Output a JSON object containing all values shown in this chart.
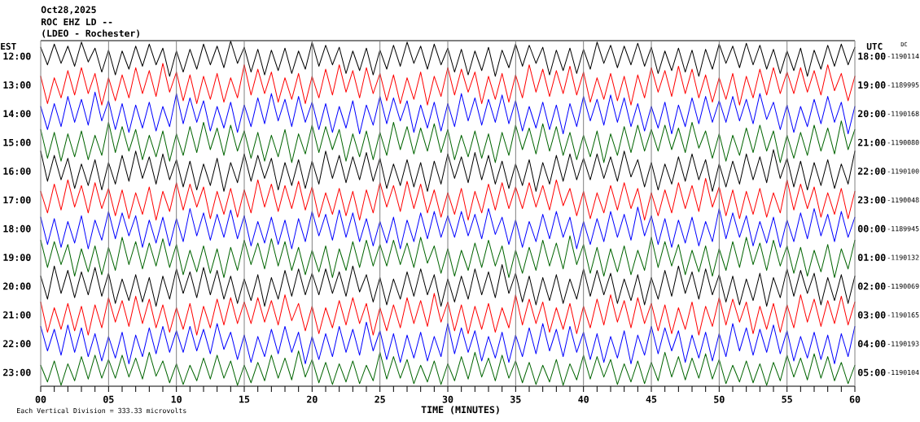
{
  "chart_data": {
    "type": "line",
    "title": "Oct28,2025",
    "subtitle": "ROC EHZ LD --",
    "xlabel": "TIME (MINUTES)",
    "ylabel": "EST",
    "annotations": [
      "(LDEO - Rochester)",
      "Each Vertical Division = 333.33 microvolts",
      "UTC",
      "DC",
      "18:00",
      "19:00",
      "20:00",
      "21:00",
      "22:00",
      "23:00",
      "00:00",
      "01:00",
      "02:00",
      "03:00",
      "04:00",
      "05:00",
      "-1190114",
      "-1189995",
      "-1190168",
      "-1190080",
      "-1190100",
      "-1190048",
      "-1189945",
      "-1190132",
      "-1190069",
      "-1190165",
      "-1190193",
      "-1190104"
    ],
    "grid": "x",
    "xlim": [
      0,
      60
    ],
    "xticks": [
      {
        "value": 0,
        "label": "00"
      },
      {
        "value": 1,
        "label": null
      },
      {
        "value": 2,
        "label": null
      },
      {
        "value": 3,
        "label": null
      },
      {
        "value": 4,
        "label": null
      },
      {
        "value": 5,
        "label": "05"
      },
      {
        "value": 6,
        "label": null
      },
      {
        "value": 7,
        "label": null
      },
      {
        "value": 8,
        "label": null
      },
      {
        "value": 9,
        "label": null
      },
      10,
      {
        "value": 11,
        "label": null
      },
      {
        "value": 12,
        "label": null
      },
      {
        "value": 13,
        "label": null
      },
      {
        "value": 14,
        "label": null
      },
      15,
      {
        "value": 16,
        "label": null
      },
      {
        "value": 17,
        "label": null
      },
      {
        "value": 18,
        "label": null
      },
      {
        "value": 19,
        "label": null
      },
      20,
      {
        "value": 21,
        "label": null
      },
      {
        "value": 22,
        "label": null
      },
      {
        "value": 23,
        "label": null
      },
      {
        "value": 24,
        "label": null
      },
      25,
      {
        "value": 26,
        "label": null
      },
      {
        "value": 27,
        "label": null
      },
      {
        "value": 28,
        "label": null
      },
      {
        "value": 29,
        "label": null
      },
      30,
      {
        "value": 31,
        "label": null
      },
      {
        "value": 32,
        "label": null
      },
      {
        "value": 33,
        "label": null
      },
      {
        "value": 34,
        "label": null
      },
      35,
      {
        "value": 36,
        "label": null
      },
      {
        "value": 37,
        "label": null
      },
      {
        "value": 38,
        "label": null
      },
      {
        "value": 39,
        "label": null
      },
      40,
      {
        "value": 41,
        "label": null
      },
      {
        "value": 42,
        "label": null
      },
      {
        "value": 43,
        "label": null
      },
      {
        "value": 44,
        "label": null
      },
      45,
      {
        "value": 46,
        "label": null
      },
      {
        "value": 47,
        "label": null
      },
      {
        "value": 48,
        "label": null
      },
      {
        "value": 49,
        "label": null
      },
      50,
      {
        "value": 51,
        "label": null
      },
      {
        "value": 52,
        "label": null
      },
      {
        "value": 53,
        "label": null
      },
      {
        "value": 54,
        "label": null
      },
      55,
      {
        "value": 56,
        "label": null
      },
      {
        "value": 57,
        "label": null
      },
      {
        "value": 58,
        "label": null
      },
      {
        "value": 59,
        "label": null
      },
      60
    ],
    "ylim": [
      23.48,
      11.46
    ],
    "yticks": [
      {
        "value": 12,
        "label": "12:00"
      },
      {
        "value": 13,
        "label": "13:00"
      },
      {
        "value": 14,
        "label": "14:00"
      },
      {
        "value": 15,
        "label": "15:00"
      },
      {
        "value": 16,
        "label": "16:00"
      },
      {
        "value": 17,
        "label": "17:00"
      },
      {
        "value": 18,
        "label": "18:00"
      },
      {
        "value": 19,
        "label": "19:00"
      },
      {
        "value": 20,
        "label": "20:00"
      },
      {
        "value": 21,
        "label": "21:00"
      },
      {
        "value": 22,
        "label": "22:00"
      },
      {
        "value": 23,
        "label": "23:00"
      }
    ],
    "x": [
      0,
      0.5,
      1,
      1.5,
      2,
      2.5,
      3,
      3.5,
      4,
      4.5,
      5,
      5.5,
      6,
      6.5,
      7,
      7.5,
      8,
      8.5,
      9,
      9.5,
      10,
      10.5,
      11,
      11.5,
      12,
      12.5,
      13,
      13.5,
      14,
      14.5,
      15,
      15.5,
      16,
      16.5,
      17,
      17.5,
      18,
      18.5,
      19,
      19.5,
      20,
      20.5,
      21,
      21.5,
      22,
      22.5,
      23,
      23.5,
      24,
      24.5,
      25,
      25.5,
      26,
      26.5,
      27,
      27.5,
      28,
      28.5,
      29,
      29.5,
      30,
      30.5,
      31,
      31.5,
      32,
      32.5,
      33,
      33.5,
      34,
      34.5,
      35,
      35.5,
      36,
      36.5,
      37,
      37.5,
      38,
      38.5,
      39,
      39.5,
      40,
      40.5,
      41,
      41.5,
      42,
      42.5,
      43,
      43.5,
      44,
      44.5,
      45,
      45.5,
      46,
      46.5,
      47,
      47.5,
      48,
      48.5,
      49,
      49.5,
      50,
      50.5,
      51,
      51.5,
      52,
      52.5,
      53,
      53.5,
      54,
      54.5,
      55,
      55.5,
      56,
      56.5,
      57,
      57.5,
      58,
      58.5,
      59,
      59.5,
      60
    ],
    "series": [
      {
        "color": "#000000",
        "values": [
          11.69,
          12.3,
          11.58,
          12.25,
          11.65,
          12.35,
          11.51,
          12.2,
          11.72,
          12.55,
          11.79,
          12.65,
          11.82,
          12.45,
          11.65,
          12.35,
          11.58,
          12.3,
          11.72,
          12.7,
          11.82,
          12.55,
          11.76,
          12.45,
          11.58,
          12.3,
          11.65,
          12.4,
          11.48,
          12.25,
          11.69,
          12.55,
          11.76,
          12.65,
          11.79,
          12.5,
          11.72,
          12.6,
          11.82,
          12.45,
          11.51,
          12.35,
          11.62,
          12.3,
          11.69,
          12.6,
          11.82,
          12.5,
          11.72,
          12.65,
          11.79,
          12.45,
          11.62,
          12.35,
          11.51,
          12.25,
          11.65,
          12.45,
          11.58,
          12.3,
          11.72,
          12.55,
          11.76,
          12.65,
          11.82,
          12.5,
          11.69,
          12.7,
          11.79,
          12.4,
          11.58,
          12.35,
          11.62,
          12.25,
          11.69,
          12.65,
          11.79,
          12.5,
          11.72,
          12.6,
          11.76,
          12.45,
          11.51,
          12.25,
          11.62,
          12.4,
          11.65,
          12.3,
          11.55,
          12.35,
          11.69,
          12.6,
          11.82,
          12.5,
          11.72,
          12.55,
          11.79,
          12.7,
          11.76,
          12.45,
          11.58,
          12.25,
          11.65,
          12.4,
          11.55,
          12.3,
          11.62,
          12.45,
          11.76,
          12.6,
          11.82,
          12.5,
          11.72,
          12.7,
          11.79,
          12.45,
          11.62,
          12.35,
          11.58,
          12.3,
          11.69
        ]
      },
      {
        "color": "#ff0000",
        "values": [
          12.7,
          13.65,
          12.75,
          13.45,
          12.5,
          13.35,
          12.4,
          13.3,
          12.6,
          13.7,
          12.75,
          13.55,
          12.65,
          13.45,
          12.4,
          13.3,
          12.5,
          13.4,
          12.25,
          13.25,
          12.55,
          13.55,
          12.65,
          13.65,
          12.7,
          13.5,
          12.6,
          13.6,
          12.75,
          13.45,
          12.3,
          13.35,
          12.45,
          13.3,
          12.55,
          13.6,
          12.75,
          13.5,
          12.6,
          13.65,
          12.7,
          13.45,
          12.45,
          13.35,
          12.3,
          13.25,
          12.5,
          13.45,
          12.4,
          13.3,
          12.6,
          13.55,
          12.65,
          13.65,
          12.75,
          13.5,
          12.55,
          13.7,
          12.7,
          13.4,
          12.4,
          13.35,
          12.45,
          13.25,
          12.55,
          13.65,
          12.7,
          13.5,
          12.6,
          13.6,
          12.65,
          13.45,
          12.3,
          13.25,
          12.45,
          13.4,
          12.5,
          13.3,
          12.35,
          13.35,
          12.55,
          13.6,
          12.75,
          13.5,
          12.6,
          13.55,
          12.7,
          13.7,
          12.65,
          13.45,
          12.4,
          13.25,
          12.5,
          13.4,
          12.35,
          13.3,
          12.45,
          13.45,
          12.65,
          13.6,
          12.75,
          13.5,
          12.6,
          13.7,
          12.7,
          13.45,
          12.45,
          13.35,
          12.4,
          13.3,
          12.55,
          13.3,
          12.4,
          13.25,
          12.5,
          13.35,
          12.3,
          13.2,
          12.6,
          13.55,
          12.7
        ]
      },
      {
        "color": "#0000ff",
        "values": [
          13.75,
          14.55,
          13.65,
          14.45,
          13.4,
          14.3,
          13.5,
          14.4,
          13.25,
          14.25,
          13.55,
          14.55,
          13.65,
          14.65,
          13.7,
          14.5,
          13.6,
          14.6,
          13.75,
          14.45,
          13.3,
          14.35,
          13.45,
          14.3,
          13.55,
          14.6,
          13.75,
          14.5,
          13.6,
          14.65,
          13.7,
          14.45,
          13.45,
          14.35,
          13.3,
          14.25,
          13.5,
          14.45,
          13.4,
          14.3,
          13.6,
          14.55,
          13.65,
          14.65,
          13.75,
          14.5,
          13.55,
          14.7,
          13.7,
          14.4,
          13.4,
          14.35,
          13.45,
          14.25,
          13.55,
          14.65,
          13.7,
          14.5,
          13.6,
          14.6,
          13.65,
          14.45,
          13.3,
          14.25,
          13.45,
          14.4,
          13.5,
          14.3,
          13.35,
          14.35,
          13.55,
          14.6,
          13.75,
          14.5,
          13.6,
          14.55,
          13.7,
          14.7,
          13.65,
          14.45,
          13.4,
          14.25,
          13.5,
          14.4,
          13.35,
          14.3,
          13.45,
          14.45,
          13.65,
          14.6,
          13.75,
          14.5,
          13.6,
          14.7,
          13.7,
          14.45,
          13.45,
          14.35,
          13.4,
          14.3,
          13.55,
          14.3,
          13.4,
          14.25,
          13.5,
          14.35,
          13.3,
          14.2,
          13.6,
          14.55,
          13.7,
          14.65,
          13.75,
          14.45,
          13.5,
          14.35,
          13.4,
          14.3,
          13.6,
          14.7,
          13.75
        ]
      },
      {
        "color": "#006400",
        "values": [
          14.55,
          15.55,
          14.65,
          15.65,
          14.7,
          15.5,
          14.6,
          15.6,
          14.75,
          15.45,
          14.3,
          15.35,
          14.45,
          15.3,
          14.55,
          15.6,
          14.75,
          15.5,
          14.6,
          15.65,
          14.7,
          15.45,
          14.45,
          15.35,
          14.3,
          15.25,
          14.5,
          15.45,
          14.4,
          15.3,
          14.6,
          15.55,
          14.65,
          15.65,
          14.75,
          15.5,
          14.55,
          15.7,
          14.7,
          15.4,
          14.4,
          15.35,
          14.45,
          15.25,
          14.55,
          15.65,
          14.7,
          15.5,
          14.6,
          15.6,
          14.65,
          15.45,
          14.3,
          15.25,
          14.45,
          15.4,
          14.5,
          15.3,
          14.35,
          15.35,
          14.55,
          15.6,
          14.75,
          15.5,
          14.6,
          15.55,
          14.7,
          15.7,
          14.65,
          15.45,
          14.4,
          15.25,
          14.5,
          15.4,
          14.35,
          15.3,
          14.45,
          15.45,
          14.65,
          15.6,
          14.75,
          15.5,
          14.6,
          15.7,
          14.7,
          15.45,
          14.45,
          15.35,
          14.4,
          15.3,
          14.55,
          15.3,
          14.4,
          15.25,
          14.5,
          15.35,
          14.3,
          15.2,
          14.6,
          15.55,
          14.7,
          15.65,
          14.75,
          15.45,
          14.5,
          15.35,
          14.4,
          15.3,
          14.6,
          15.7,
          14.75,
          15.55,
          14.65,
          15.45,
          14.4,
          15.3,
          14.5,
          15.4,
          14.25,
          15.25,
          14.55
        ]
      },
      {
        "color": "#000000",
        "values": [
          15.3,
          16.35,
          15.45,
          16.3,
          15.55,
          16.6,
          15.75,
          16.5,
          15.6,
          16.65,
          15.7,
          16.45,
          15.45,
          16.35,
          15.3,
          16.25,
          15.5,
          16.45,
          15.4,
          16.3,
          15.6,
          16.55,
          15.65,
          16.65,
          15.75,
          16.5,
          15.55,
          16.7,
          15.7,
          16.4,
          15.4,
          16.35,
          15.45,
          16.25,
          15.55,
          16.65,
          15.7,
          16.5,
          15.6,
          16.6,
          15.65,
          16.45,
          15.3,
          16.25,
          15.45,
          16.4,
          15.5,
          16.3,
          15.35,
          16.35,
          15.55,
          16.6,
          15.75,
          16.5,
          15.6,
          16.55,
          15.7,
          16.7,
          15.65,
          16.45,
          15.4,
          16.25,
          15.5,
          16.4,
          15.35,
          16.3,
          15.45,
          16.45,
          15.65,
          16.6,
          15.75,
          16.5,
          15.6,
          16.7,
          15.7,
          16.45,
          15.45,
          16.35,
          15.4,
          16.3,
          15.55,
          16.3,
          15.4,
          16.25,
          15.5,
          16.35,
          15.3,
          16.2,
          15.6,
          16.55,
          15.7,
          16.65,
          15.75,
          16.45,
          15.5,
          16.35,
          15.4,
          16.3,
          15.6,
          16.7,
          15.75,
          16.55,
          15.65,
          16.45,
          15.4,
          16.3,
          15.5,
          16.4,
          15.25,
          16.25,
          15.55,
          16.55,
          15.65,
          16.65,
          15.7,
          16.5,
          15.6,
          16.6,
          15.75,
          16.45,
          15.3
        ]
      },
      {
        "color": "#ff0000",
        "values": [
          16.7,
          17.45,
          16.45,
          17.35,
          16.3,
          17.25,
          16.5,
          17.45,
          16.4,
          17.3,
          16.6,
          17.55,
          16.65,
          17.65,
          16.75,
          17.5,
          16.55,
          17.7,
          16.7,
          17.4,
          16.4,
          17.35,
          16.45,
          17.25,
          16.55,
          17.65,
          16.7,
          17.5,
          16.6,
          17.6,
          16.65,
          17.45,
          16.3,
          17.25,
          16.45,
          17.4,
          16.5,
          17.3,
          16.35,
          17.35,
          16.55,
          17.6,
          16.75,
          17.5,
          16.6,
          17.55,
          16.7,
          17.7,
          16.65,
          17.45,
          16.4,
          17.25,
          16.5,
          17.4,
          16.35,
          17.3,
          16.45,
          17.45,
          16.65,
          17.6,
          16.75,
          17.5,
          16.6,
          17.7,
          16.7,
          17.45,
          16.45,
          17.35,
          16.4,
          17.3,
          16.55,
          17.3,
          16.4,
          17.25,
          16.5,
          17.35,
          16.3,
          17.2,
          16.6,
          17.55,
          16.7,
          17.65,
          16.75,
          17.45,
          16.5,
          17.35,
          16.4,
          17.3,
          16.6,
          17.7,
          16.75,
          17.55,
          16.65,
          17.45,
          16.4,
          17.3,
          16.5,
          17.4,
          16.25,
          17.25,
          16.55,
          17.55,
          16.65,
          17.65,
          16.7,
          17.5,
          16.6,
          17.6,
          16.75,
          17.45,
          16.3,
          17.35,
          16.45,
          17.3,
          16.55,
          17.6,
          16.75,
          17.5,
          16.6,
          17.65,
          16.7
        ]
      },
      {
        "color": "#0000ff",
        "values": [
          17.6,
          18.55,
          17.65,
          18.65,
          17.75,
          18.5,
          17.55,
          18.7,
          17.7,
          18.4,
          17.4,
          18.35,
          17.45,
          18.25,
          17.55,
          18.65,
          17.7,
          18.5,
          17.6,
          18.6,
          17.65,
          18.45,
          17.3,
          18.25,
          17.45,
          18.4,
          17.5,
          18.3,
          17.35,
          18.35,
          17.55,
          18.6,
          17.75,
          18.5,
          17.6,
          18.55,
          17.7,
          18.7,
          17.65,
          18.45,
          17.4,
          18.25,
          17.5,
          18.4,
          17.35,
          18.3,
          17.45,
          18.45,
          17.65,
          18.6,
          17.75,
          18.5,
          17.6,
          18.7,
          17.7,
          18.45,
          17.45,
          18.35,
          17.4,
          18.3,
          17.55,
          18.3,
          17.4,
          18.25,
          17.5,
          18.35,
          17.3,
          18.2,
          17.6,
          18.55,
          17.7,
          18.65,
          17.75,
          18.45,
          17.5,
          18.35,
          17.4,
          18.3,
          17.6,
          18.7,
          17.75,
          18.55,
          17.65,
          18.45,
          17.4,
          18.3,
          17.5,
          18.4,
          17.25,
          18.25,
          17.55,
          18.55,
          17.65,
          18.65,
          17.7,
          18.5,
          17.6,
          18.6,
          17.75,
          18.45,
          17.3,
          18.35,
          17.45,
          18.3,
          17.55,
          18.6,
          17.75,
          18.5,
          17.6,
          18.65,
          17.7,
          18.45,
          17.45,
          18.35,
          17.3,
          18.25,
          17.5,
          18.45,
          17.4,
          18.3,
          17.6
        ]
      },
      {
        "color": "#006400",
        "values": [
          18.4,
          19.35,
          18.45,
          19.25,
          18.55,
          19.65,
          18.7,
          19.5,
          18.6,
          19.6,
          18.65,
          19.45,
          18.3,
          19.25,
          18.45,
          19.4,
          18.5,
          19.3,
          18.35,
          19.35,
          18.55,
          19.6,
          18.75,
          19.5,
          18.6,
          19.55,
          18.7,
          19.7,
          18.65,
          19.45,
          18.4,
          19.25,
          18.5,
          19.4,
          18.35,
          19.3,
          18.45,
          19.45,
          18.65,
          19.6,
          18.75,
          19.5,
          18.6,
          19.7,
          18.7,
          19.45,
          18.45,
          19.35,
          18.4,
          19.3,
          18.55,
          19.3,
          18.4,
          19.25,
          18.5,
          19.35,
          18.3,
          19.2,
          18.6,
          19.55,
          18.7,
          19.65,
          18.75,
          19.45,
          18.5,
          19.35,
          18.4,
          19.3,
          18.6,
          19.7,
          18.75,
          19.55,
          18.65,
          19.45,
          18.4,
          19.3,
          18.5,
          19.4,
          18.25,
          19.25,
          18.55,
          19.55,
          18.65,
          19.65,
          18.7,
          19.5,
          18.6,
          19.6,
          18.75,
          19.45,
          18.3,
          19.35,
          18.45,
          19.3,
          18.55,
          19.6,
          18.75,
          19.5,
          18.6,
          19.65,
          18.7,
          19.45,
          18.45,
          19.35,
          18.3,
          19.25,
          18.5,
          19.45,
          18.4,
          19.3,
          18.6,
          19.55,
          18.65,
          19.65,
          18.75,
          19.5,
          18.55,
          19.7,
          18.7,
          19.4,
          18.4
        ]
      },
      {
        "color": "#000000",
        "values": [
          19.65,
          20.45,
          19.3,
          20.25,
          19.45,
          20.4,
          19.5,
          20.3,
          19.35,
          20.35,
          19.55,
          20.6,
          19.75,
          20.5,
          19.6,
          20.55,
          19.7,
          20.7,
          19.65,
          20.45,
          19.4,
          20.25,
          19.5,
          20.4,
          19.35,
          20.3,
          19.45,
          20.45,
          19.65,
          20.6,
          19.75,
          20.5,
          19.6,
          20.7,
          19.7,
          20.45,
          19.45,
          20.35,
          19.4,
          20.3,
          19.55,
          20.3,
          19.4,
          20.25,
          19.5,
          20.35,
          19.3,
          20.2,
          19.6,
          20.55,
          19.7,
          20.65,
          19.75,
          20.45,
          19.5,
          20.35,
          19.4,
          20.3,
          19.6,
          20.7,
          19.75,
          20.55,
          19.65,
          20.45,
          19.4,
          20.3,
          19.5,
          20.4,
          19.25,
          20.25,
          19.55,
          20.55,
          19.65,
          20.65,
          19.7,
          20.5,
          19.6,
          20.6,
          19.75,
          20.45,
          19.4,
          20.35,
          19.45,
          20.3,
          19.55,
          20.6,
          19.75,
          20.5,
          19.6,
          20.65,
          19.7,
          20.45,
          19.45,
          20.35,
          19.3,
          20.25,
          19.5,
          20.45,
          19.4,
          20.3,
          19.6,
          20.55,
          19.65,
          20.65,
          19.75,
          20.5,
          19.55,
          20.7,
          19.7,
          20.4,
          19.4,
          20.35,
          19.45,
          20.25,
          19.55,
          20.65,
          19.7,
          20.5,
          19.6,
          20.6,
          19.65
        ]
      },
      {
        "color": "#ff0000",
        "values": [
          20.55,
          21.6,
          20.75,
          21.5,
          20.6,
          21.55,
          20.7,
          21.7,
          20.65,
          21.45,
          20.4,
          21.25,
          20.5,
          21.4,
          20.35,
          21.3,
          20.45,
          21.45,
          20.65,
          21.6,
          20.75,
          21.5,
          20.6,
          21.7,
          20.7,
          21.45,
          20.45,
          21.35,
          20.4,
          21.3,
          20.55,
          21.3,
          20.4,
          21.25,
          20.5,
          21.35,
          20.3,
          21.2,
          20.6,
          21.55,
          20.7,
          21.65,
          20.75,
          21.45,
          20.5,
          21.35,
          20.4,
          21.3,
          20.6,
          21.7,
          20.75,
          21.55,
          20.65,
          21.45,
          20.4,
          21.3,
          20.5,
          21.4,
          20.25,
          21.25,
          20.55,
          21.55,
          20.65,
          21.65,
          20.7,
          21.5,
          20.6,
          21.6,
          20.75,
          21.45,
          20.3,
          21.35,
          20.45,
          21.3,
          20.55,
          21.6,
          20.75,
          21.5,
          20.6,
          21.65,
          20.7,
          21.45,
          20.45,
          21.35,
          20.3,
          21.25,
          20.5,
          21.45,
          20.4,
          21.3,
          20.6,
          21.55,
          20.65,
          21.65,
          20.75,
          21.5,
          20.55,
          21.7,
          20.7,
          21.4,
          20.4,
          21.35,
          20.45,
          21.25,
          20.55,
          21.65,
          20.7,
          21.5,
          20.6,
          21.6,
          20.65,
          21.45,
          20.3,
          21.25,
          20.45,
          21.4,
          20.5,
          21.3,
          20.35,
          21.35,
          20.55
        ]
      },
      {
        "color": "#0000ff",
        "values": [
          21.4,
          22.25,
          21.5,
          22.4,
          21.35,
          22.3,
          21.45,
          22.45,
          21.65,
          22.6,
          21.75,
          22.5,
          21.6,
          22.7,
          21.7,
          22.45,
          21.45,
          22.35,
          21.4,
          22.3,
          21.55,
          22.3,
          21.4,
          22.25,
          21.5,
          22.35,
          21.3,
          22.2,
          21.6,
          22.55,
          21.7,
          22.65,
          21.75,
          22.45,
          21.5,
          22.35,
          21.4,
          22.3,
          21.6,
          22.7,
          21.75,
          22.55,
          21.65,
          22.45,
          21.4,
          22.3,
          21.5,
          22.4,
          21.25,
          22.25,
          21.55,
          22.55,
          21.65,
          22.65,
          21.7,
          22.5,
          21.6,
          22.6,
          21.75,
          22.45,
          21.3,
          22.35,
          21.45,
          22.3,
          21.55,
          22.6,
          21.75,
          22.5,
          21.6,
          22.65,
          21.7,
          22.45,
          21.45,
          22.35,
          21.3,
          22.25,
          21.5,
          22.45,
          21.4,
          22.3,
          21.6,
          22.55,
          21.65,
          22.65,
          21.75,
          22.5,
          21.55,
          22.7,
          21.7,
          22.4,
          21.4,
          22.35,
          21.45,
          22.25,
          21.55,
          22.65,
          21.7,
          22.5,
          21.6,
          22.6,
          21.65,
          22.45,
          21.3,
          22.25,
          21.45,
          22.4,
          21.5,
          22.3,
          21.35,
          22.35,
          21.55,
          22.6,
          21.75,
          22.5,
          21.6,
          22.55,
          21.7,
          22.7,
          21.65,
          22.45,
          21.4
        ]
      },
      {
        "color": "#006400",
        "values": [
          22.75,
          23.33,
          22.6,
          23.45,
          22.7,
          23.29,
          22.45,
          23.23,
          22.4,
          23.2,
          22.55,
          23.2,
          22.4,
          23.16,
          22.5,
          23.23,
          22.3,
          23.13,
          22.6,
          23.36,
          22.7,
          23.42,
          22.75,
          23.29,
          22.5,
          23.23,
          22.4,
          23.2,
          22.6,
          23.45,
          22.75,
          23.36,
          22.65,
          23.29,
          22.4,
          23.2,
          22.5,
          23.26,
          22.25,
          23.16,
          22.55,
          23.36,
          22.65,
          23.42,
          22.7,
          23.33,
          22.6,
          23.39,
          22.75,
          23.29,
          22.3,
          23.23,
          22.45,
          23.2,
          22.55,
          23.39,
          22.75,
          23.33,
          22.6,
          23.42,
          22.7,
          23.29,
          22.45,
          23.23,
          22.3,
          23.16,
          22.5,
          23.29,
          22.4,
          23.2,
          22.6,
          23.36,
          22.65,
          23.42,
          22.75,
          23.33,
          22.55,
          23.45,
          22.7,
          23.26,
          22.4,
          23.23,
          22.45,
          23.16,
          22.55,
          23.42,
          22.7,
          23.33,
          22.6,
          23.39,
          22.65,
          23.29,
          22.3,
          23.16,
          22.45,
          23.26,
          22.5,
          23.2,
          22.35,
          23.23,
          22.55,
          23.39,
          22.75,
          23.33,
          22.6,
          23.36,
          22.7,
          23.45,
          22.65,
          23.29,
          22.4,
          23.16,
          22.5,
          23.26,
          22.35,
          23.2,
          22.45,
          23.29,
          22.65,
          23.39,
          22.75
        ]
      }
    ]
  }
}
